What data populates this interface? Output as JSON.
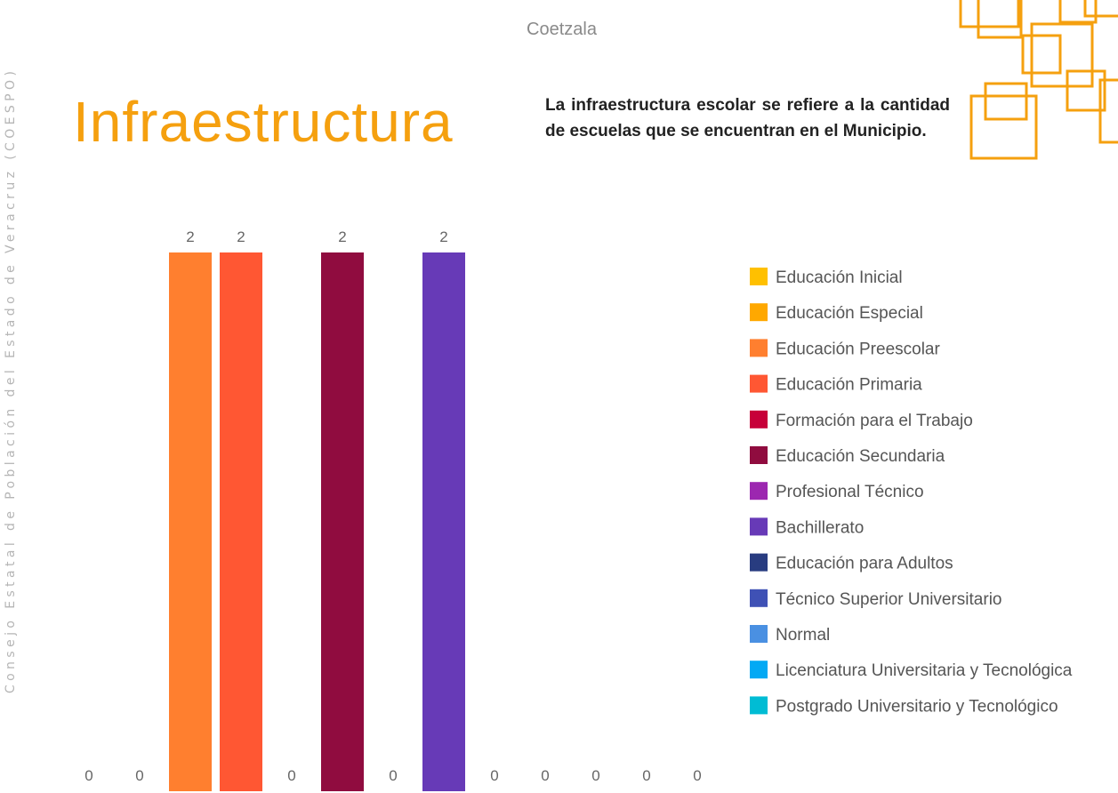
{
  "sidebar": "Consejo Estatal de Población del Estado de Veracruz (COESPO)",
  "header": {
    "municipality": "Coetzala",
    "title": "Infraestructura",
    "description": "La infraestructura escolar se refiere a la cantidad de escuelas que se encuentran en el Municipio."
  },
  "chart_data": {
    "type": "bar",
    "categories": [
      "Educación Inicial",
      "Educación Especial",
      "Educación Preescolar",
      "Educación Primaria",
      "Formación para el Trabajo",
      "Educación Secundaria",
      "Profesional Técnico",
      "Bachillerato",
      "Educación para Adultos",
      "Técnico Superior Universitario",
      "Normal",
      "Licenciatura Universitaria y Tecnológica",
      "Postgrado Universitario y Tecnológico"
    ],
    "values": [
      0,
      0,
      2,
      2,
      0,
      2,
      0,
      2,
      0,
      0,
      0,
      0,
      0
    ],
    "colors": [
      "#FFC000",
      "#FFA800",
      "#FF7F2F",
      "#FF5733",
      "#C70039",
      "#900C3F",
      "#9C27B0",
      "#673AB7",
      "#283C80",
      "#3F51B5",
      "#4A90E2",
      "#03A9F4",
      "#00BCD4"
    ],
    "ylim": [
      0,
      2
    ],
    "legend": "right"
  }
}
